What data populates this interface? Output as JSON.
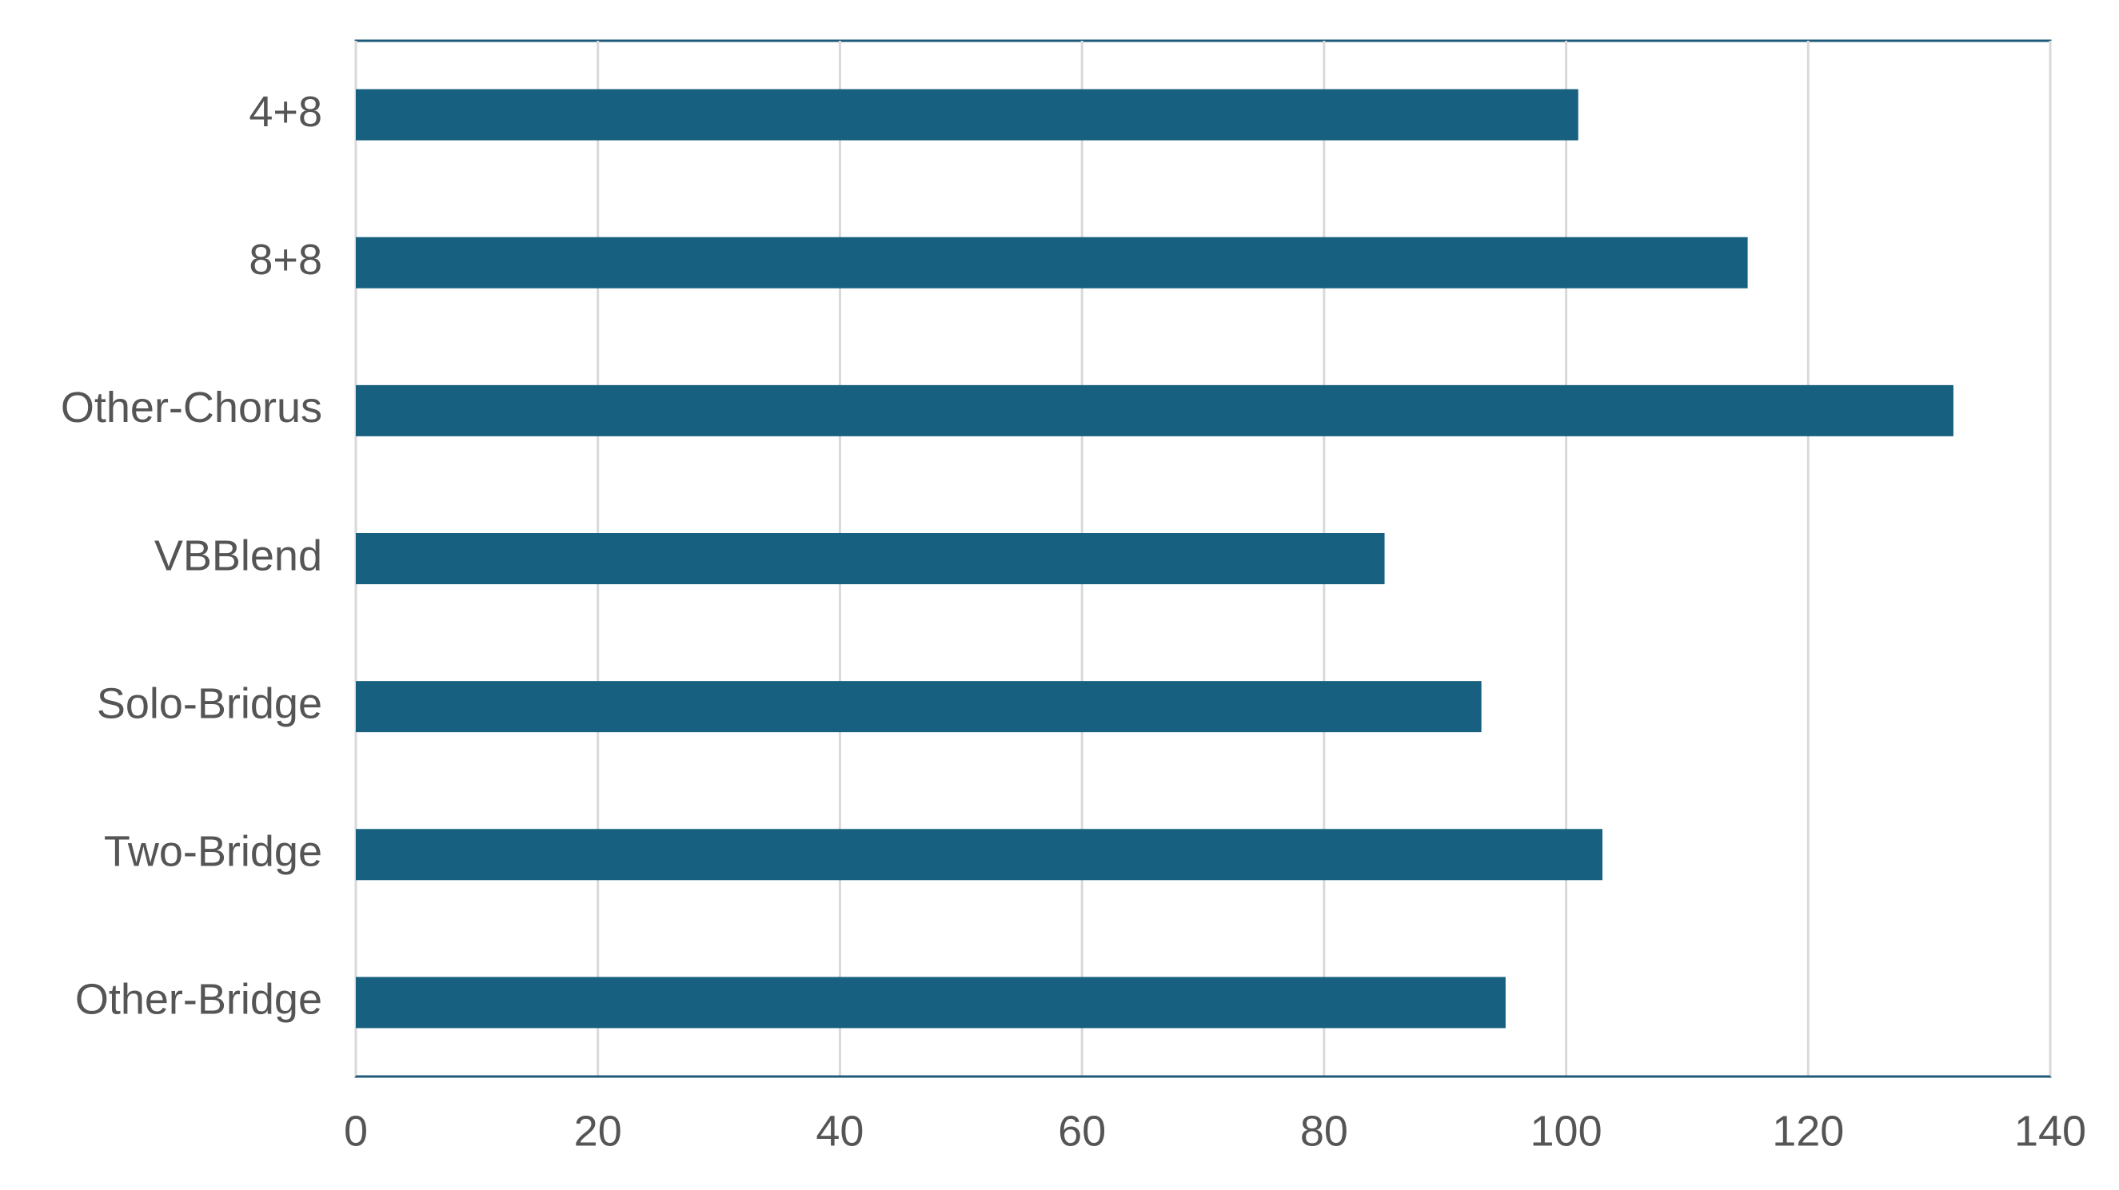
{
  "chart_data": {
    "type": "bar",
    "orientation": "horizontal",
    "categories": [
      "4+8",
      "8+8",
      "Other-Chorus",
      "VBBlend",
      "Solo-Bridge",
      "Two-Bridge",
      "Other-Bridge"
    ],
    "values": [
      101,
      115,
      132,
      85,
      93,
      103,
      95
    ],
    "color": "#17607f",
    "xlim": [
      0,
      140
    ],
    "xticks": [
      0,
      20,
      40,
      60,
      80,
      100,
      120,
      140
    ],
    "grid": true
  }
}
